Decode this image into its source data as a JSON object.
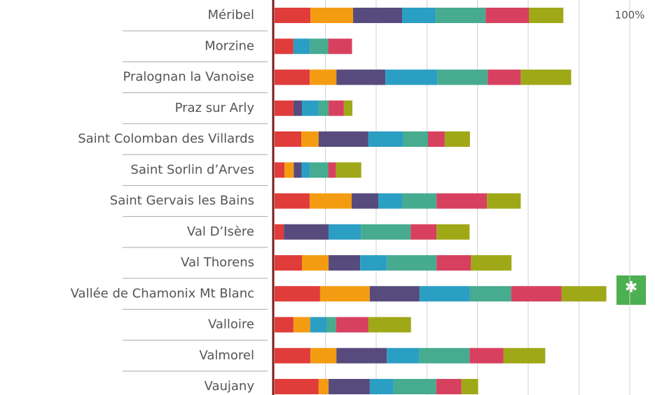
{
  "chart_data": {
    "type": "stacked-bar-horizontal",
    "categories": [
      "Méribel",
      "Morzine",
      "Pralognan la Vanoise",
      "Praz sur Arly",
      "Saint Colomban des Villards",
      "Saint Sorlin d’Arves",
      "Saint Gervais les Bains",
      "Val D’Isère",
      "Val Thorens",
      "Vallée de Chamonix Mt Blanc",
      "Valloire",
      "Valmorel",
      "Vaujany"
    ],
    "series": [
      {
        "color": "#e03c3a",
        "values": [
          10.1,
          5.3,
          9.9,
          5.3,
          7.5,
          2.8,
          9.9,
          2.6,
          7.7,
          12.8,
          5.3,
          10.1,
          12.4
        ]
      },
      {
        "color": "#f39c12",
        "values": [
          12.0,
          0,
          7.5,
          0,
          4.9,
          2.6,
          11.8,
          0,
          7.5,
          14.0,
          4.7,
          7.3,
          2.8
        ]
      },
      {
        "color": "#574b7d",
        "values": [
          13.8,
          0,
          13.8,
          2.4,
          14.0,
          2.2,
          7.5,
          12.6,
          8.9,
          14.0,
          0,
          14.2,
          11.6
        ]
      },
      {
        "color": "#2b9ec4",
        "values": [
          9.5,
          4.7,
          14.6,
          4.7,
          9.7,
          2.4,
          6.7,
          9.1,
          7.5,
          14.2,
          4.7,
          9.1,
          6.7
        ]
      },
      {
        "color": "#46ab8f",
        "values": [
          14.0,
          5.1,
          14.2,
          2.8,
          7.1,
          5.1,
          9.7,
          14.0,
          14.0,
          11.6,
          2.6,
          14.2,
          12.0
        ]
      },
      {
        "color": "#d8405f",
        "values": [
          12.2,
          6.7,
          9.3,
          4.3,
          4.7,
          2.2,
          14.2,
          7.3,
          9.7,
          14.2,
          9.1,
          9.5,
          7.1
        ]
      },
      {
        "color": "#9fa817",
        "values": [
          9.7,
          0,
          14.2,
          2.4,
          7.1,
          7.1,
          9.5,
          9.3,
          11.4,
          12.6,
          12.0,
          11.8,
          4.7
        ]
      }
    ],
    "xlim": [
      0,
      100
    ],
    "xgrid": [
      14.3,
      28.6,
      42.9,
      57.1,
      71.4,
      85.7,
      100
    ],
    "xticks": [
      {
        "value": 100,
        "label": "100%"
      }
    ],
    "grid": true
  }
}
